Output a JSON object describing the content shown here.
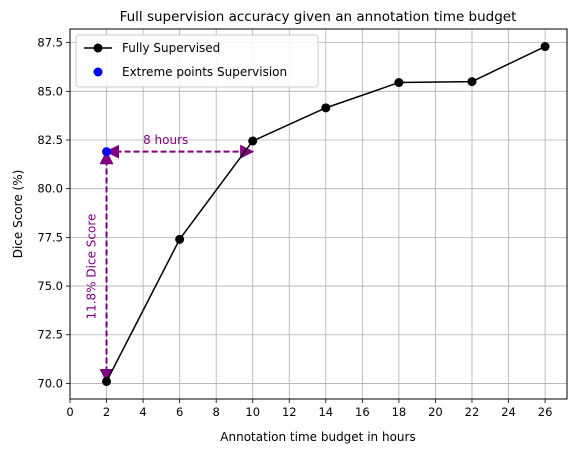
{
  "chart_data": {
    "type": "line",
    "title": "Full supervision accuracy given an annotation time budget",
    "xlabel": "Annotation time budget in hours",
    "ylabel": "Dice Score (%)",
    "xlim": [
      0,
      27.2
    ],
    "ylim": [
      69.2,
      88.2
    ],
    "x_ticks": [
      0,
      2,
      4,
      6,
      8,
      10,
      12,
      14,
      16,
      18,
      20,
      22,
      24,
      26
    ],
    "x_tick_labels": [
      "0",
      "2",
      "4",
      "6",
      "8",
      "10",
      "12",
      "14",
      "16",
      "18",
      "20",
      "22",
      "24",
      "26"
    ],
    "y_ticks": [
      70.0,
      72.5,
      75.0,
      77.5,
      80.0,
      82.5,
      85.0,
      87.5
    ],
    "y_tick_labels": [
      "70.0",
      "72.5",
      "75.0",
      "77.5",
      "80.0",
      "82.5",
      "85.0",
      "87.5"
    ],
    "grid": true,
    "legend_position": "top-left",
    "series": [
      {
        "name": "Fully Supervised",
        "kind": "line-with-markers",
        "color": "#000000",
        "x": [
          2,
          6,
          10,
          14,
          18,
          22,
          26
        ],
        "y": [
          70.1,
          77.4,
          82.45,
          84.15,
          85.45,
          85.5,
          87.3
        ]
      },
      {
        "name": "Extreme points Supervision",
        "kind": "scatter",
        "color": "#0000ff",
        "x": [
          2
        ],
        "y": [
          81.9
        ]
      }
    ],
    "annotations": [
      {
        "text": "8 hours",
        "color": "#800080",
        "arrow": "double-dashed",
        "from": [
          2,
          81.9
        ],
        "to": [
          10,
          81.9
        ],
        "text_at": [
          4,
          82.3
        ],
        "rotation": "horizontal"
      },
      {
        "text": "11.8% Dice Score",
        "color": "#800080",
        "arrow": "double-dashed",
        "from": [
          2,
          70.1
        ],
        "to": [
          2,
          81.9
        ],
        "text_at": [
          1.5,
          76.0
        ],
        "rotation": "vertical"
      }
    ]
  }
}
